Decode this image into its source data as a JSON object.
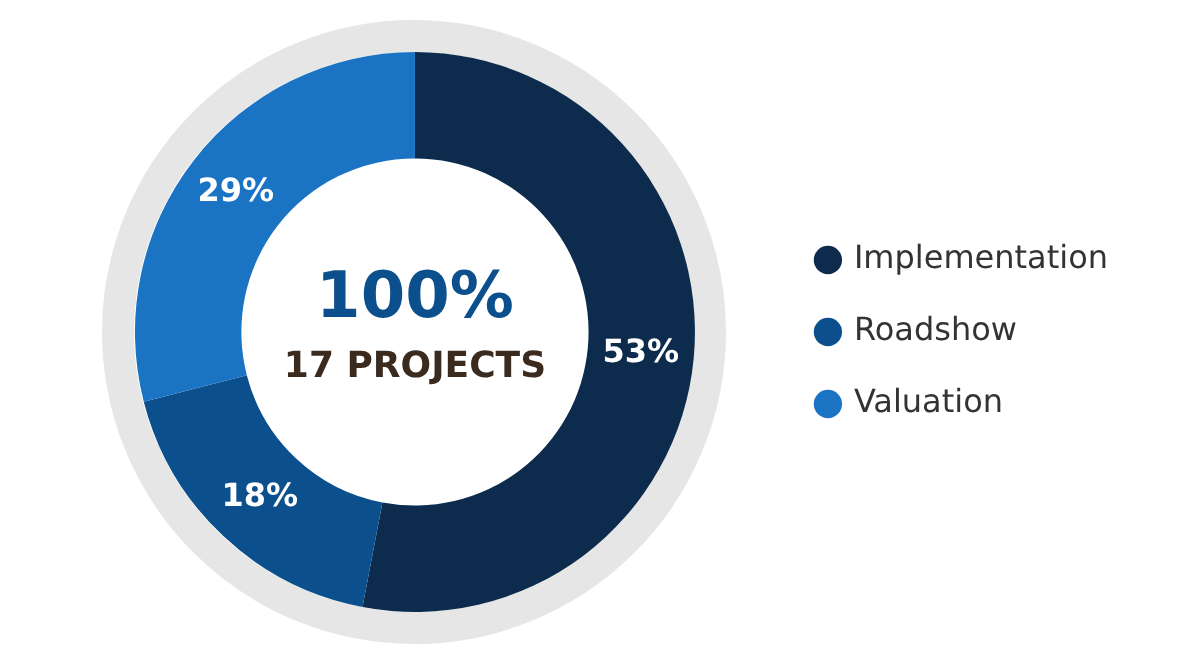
{
  "chart_data": {
    "type": "donut",
    "categories": [
      "Implementation",
      "Roadshow",
      "Valuation"
    ],
    "values": [
      53,
      18,
      29
    ],
    "colors": [
      "#0d2b4d",
      "#0b4f8c",
      "#1a73c3"
    ],
    "value_labels": [
      "53%",
      "18%",
      "29%"
    ],
    "annotations": [
      "100%",
      "17 PROJECTS"
    ],
    "legend": "right",
    "marker": "circle"
  }
}
